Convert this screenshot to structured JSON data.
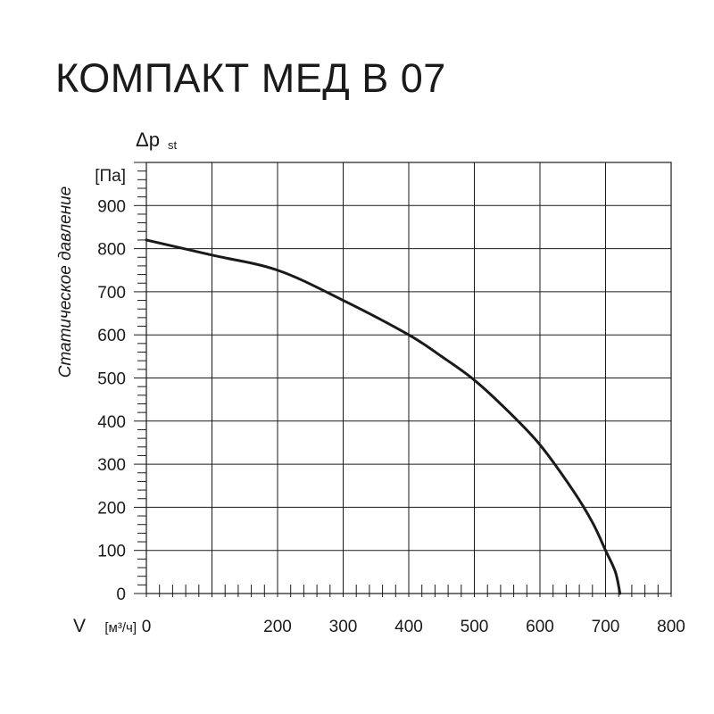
{
  "title": "КОМПАКТ МЕД В 07",
  "chart_data": {
    "type": "line",
    "title": "КОМПАКТ МЕД В 07",
    "y_symbol": "Δp",
    "y_symbol_sub": "st",
    "y_unit": "[Па]",
    "ylabel": "Статическое давление",
    "x_symbol": "V",
    "x_unit": "[м³/ч]",
    "x_ticks": [
      0,
      200,
      300,
      400,
      500,
      600,
      700,
      800
    ],
    "y_ticks": [
      0,
      100,
      200,
      300,
      400,
      500,
      600,
      700,
      800,
      900
    ],
    "xlim": [
      0,
      800
    ],
    "ylim": [
      0,
      1000
    ],
    "grid": true,
    "series": [
      {
        "x": [
          0,
          100,
          200,
          300,
          400,
          450,
          500,
          550,
          600,
          650,
          680,
          700,
          715,
          722
        ],
        "y": [
          820,
          785,
          750,
          680,
          600,
          550,
          495,
          425,
          345,
          240,
          165,
          100,
          50,
          0
        ],
        "color": "#1a1a1a"
      }
    ]
  }
}
